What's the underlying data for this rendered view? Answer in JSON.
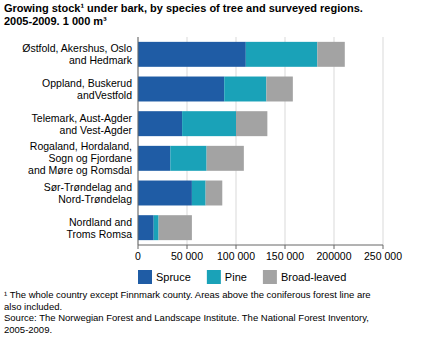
{
  "chart_data": {
    "type": "bar",
    "orientation": "horizontal",
    "stacked": true,
    "grid": true,
    "title": "Growing stock¹ under bark, by species of tree and surveyed regions.\n2005-2009. 1 000 m³",
    "categories": [
      "Østfold, Akershus, Oslo\nand Hedmark",
      "Oppland, Buskerud\nandVestfold",
      "Telemark, Aust-Agder\nand Vest-Agder",
      "Rogaland, Hordaland,\nSogn og Fjordane\nand Møre og Romsdal",
      "Sør-Trøndelag and\nNord-Trøndelag",
      "Nordland and\nTroms Romsa"
    ],
    "series": [
      {
        "name": "Spruce",
        "color": "#1f5ca5",
        "values": [
          110000,
          88000,
          45000,
          33000,
          55000,
          16000
        ]
      },
      {
        "name": "Pine",
        "color": "#1aa2b8",
        "values": [
          73000,
          43000,
          55000,
          37000,
          14000,
          5000
        ]
      },
      {
        "name": "Broad-leaved",
        "color": "#a3a3a3",
        "values": [
          28000,
          27000,
          32000,
          38000,
          17000,
          34000
        ]
      }
    ],
    "xlim": [
      0,
      250000
    ],
    "xticks": [
      0,
      {
        "value": 50000,
        "label": "50 000"
      },
      {
        "value": 100000,
        "label": "100 000"
      },
      {
        "value": 150000,
        "label": "150 000"
      },
      {
        "value": 200000,
        "label": "200000"
      },
      {
        "value": 250000,
        "label": "250 000"
      }
    ],
    "legend": "bottom",
    "notes": "¹ The whole country except Finnmark county. Areas above the coniferous forest line are\nalso included.\nSource: The Norwegian Forest and Landscape Institute. The National Forest Inventory,\n2005-2009."
  }
}
